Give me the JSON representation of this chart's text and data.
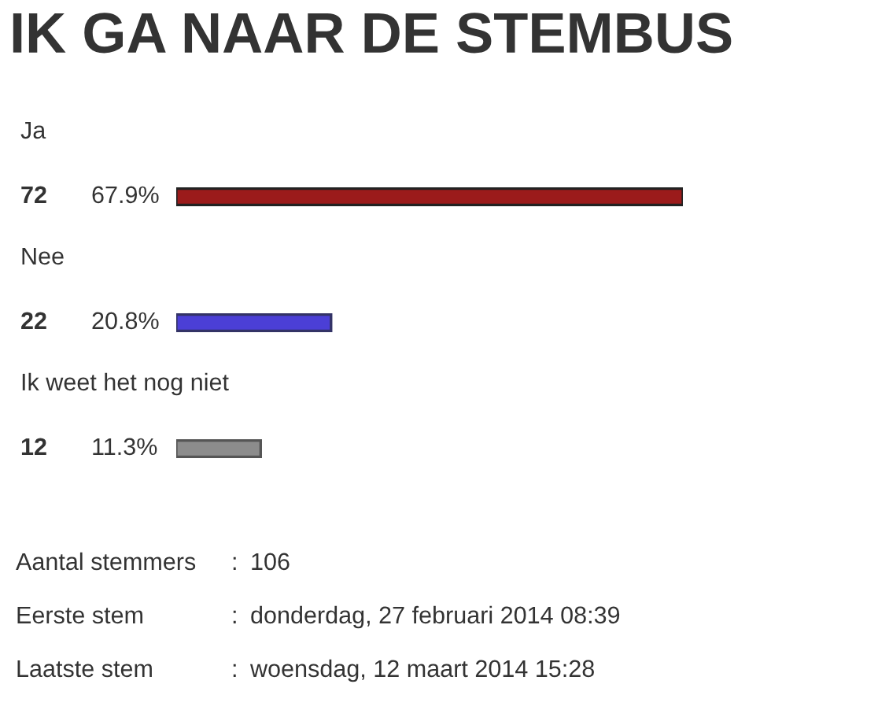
{
  "chart_data": {
    "type": "bar",
    "orientation": "horizontal",
    "title": "IK GA NAAR DE STEMBUS",
    "categories": [
      "Ja",
      "Nee",
      "Ik weet het nog niet"
    ],
    "values": [
      72,
      22,
      12
    ],
    "colors": [
      "#9b1b1b",
      "#4b3fd6",
      "#8c8c8c"
    ],
    "data_labels": true,
    "annotations": [
      "67.9%",
      "20.8%",
      "11.3%",
      "Aantal stemmers : 106",
      "Eerste stem : donderdag, 27 februari 2014 08:39",
      "Laatste stem : woensdag, 12 maart 2014 15:28"
    ]
  }
}
